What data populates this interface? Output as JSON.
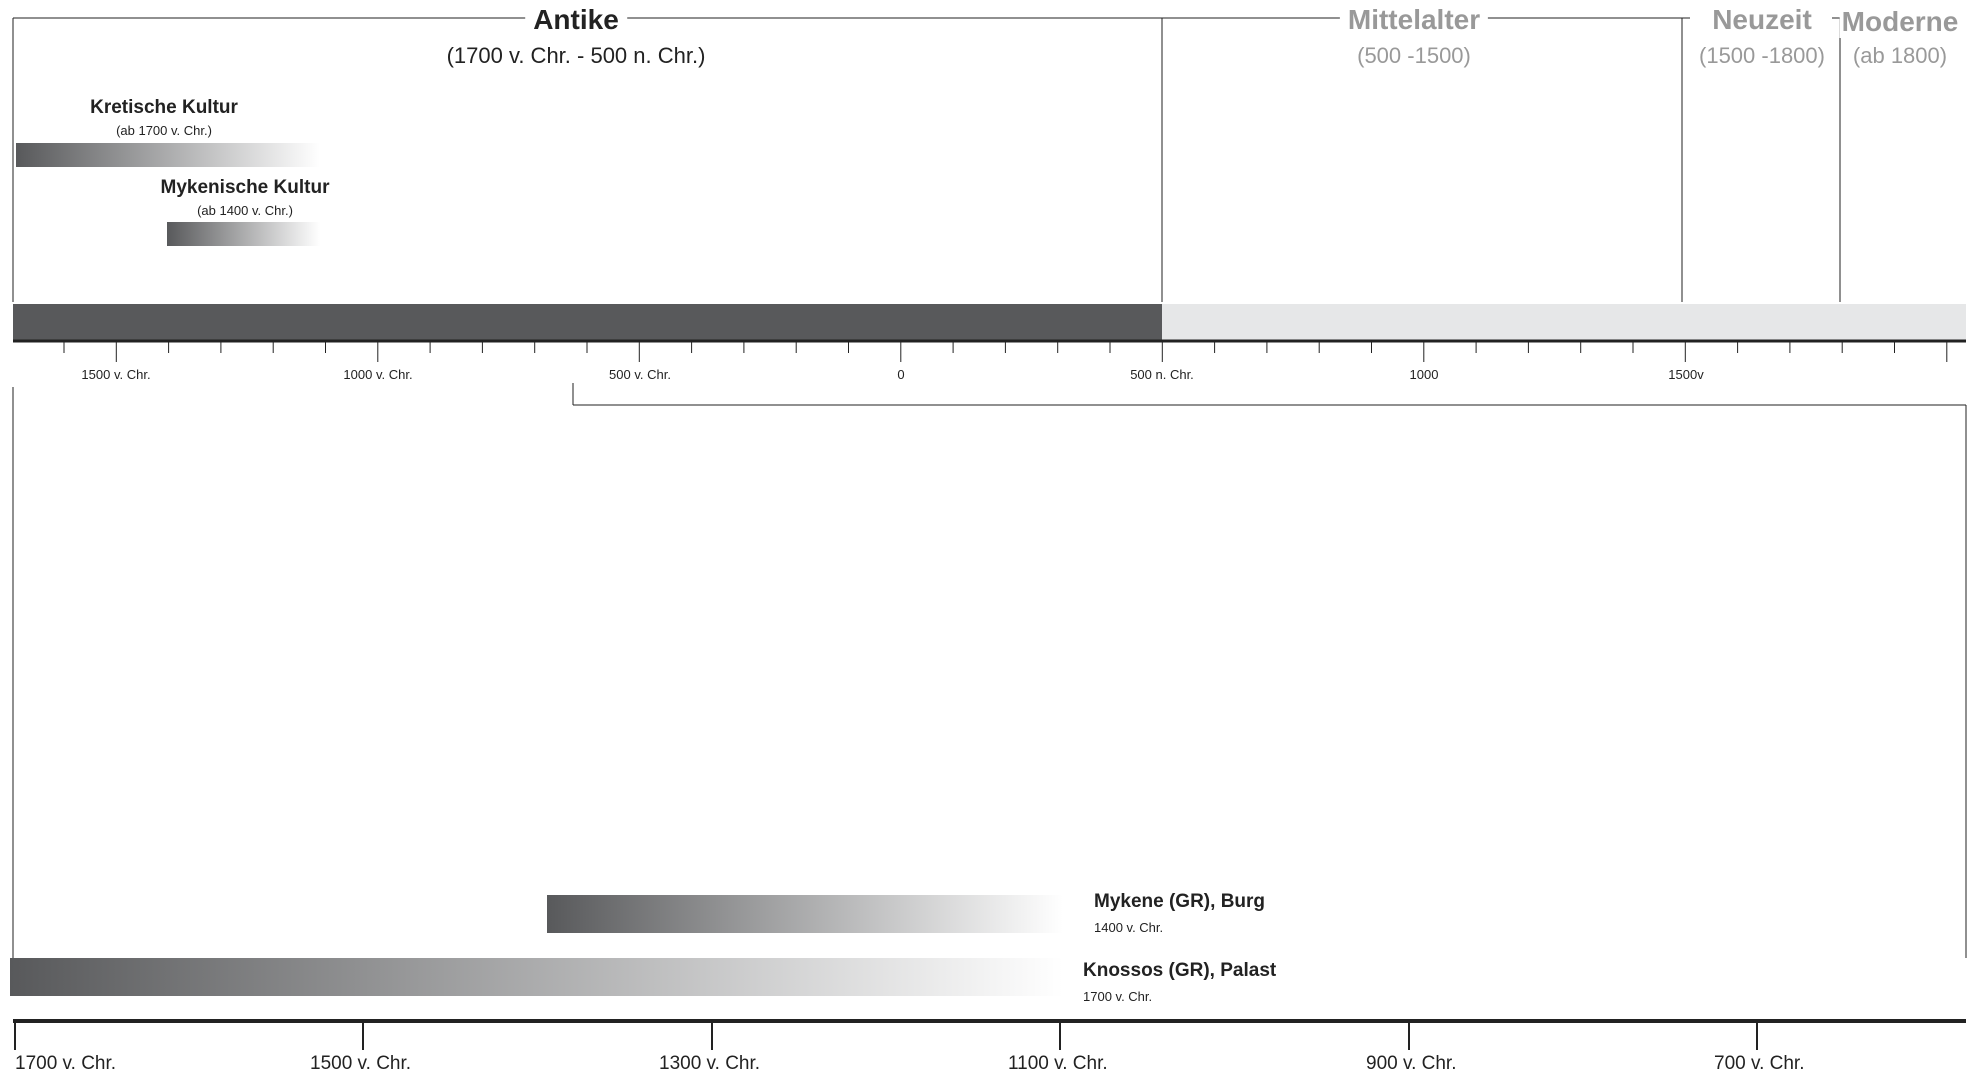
{
  "eras": [
    {
      "title": "Antike",
      "subtitle": "(1700 v. Chr. - 500 n. Chr.)",
      "color": "#222222"
    },
    {
      "title": "Mittelalter",
      "subtitle": "(500 -1500)",
      "color": "#999999"
    },
    {
      "title": "Neuzeit",
      "subtitle": "(1500 -1800)",
      "color": "#999999"
    },
    {
      "title": "Moderne",
      "subtitle": "(ab 1800)",
      "color": "#999999"
    }
  ],
  "cultures": [
    {
      "name": "Kretische Kultur",
      "date": "(ab 1700 v. Chr.)"
    },
    {
      "name": "Mykenische Kultur",
      "date": "(ab 1400 v. Chr.)"
    }
  ],
  "overview_axis": {
    "labels": [
      "1500 v. Chr.",
      "1000 v. Chr.",
      "500 v. Chr.",
      "0",
      "500 n. Chr.",
      "1000",
      "1500v"
    ],
    "bar_dark_color": "#58595b",
    "bar_light_color": "#e6e7e8"
  },
  "sites": [
    {
      "name": "Mykene (GR), Burg",
      "date": "1400 v. Chr."
    },
    {
      "name": "Knossos (GR), Palast",
      "date": "1700 v. Chr."
    }
  ],
  "detail_axis": {
    "labels": [
      "1700 v. Chr.",
      "1500 v. Chr.",
      "1300 v. Chr.",
      "1100 v. Chr.",
      "900 v. Chr.",
      "700 v. Chr."
    ]
  }
}
